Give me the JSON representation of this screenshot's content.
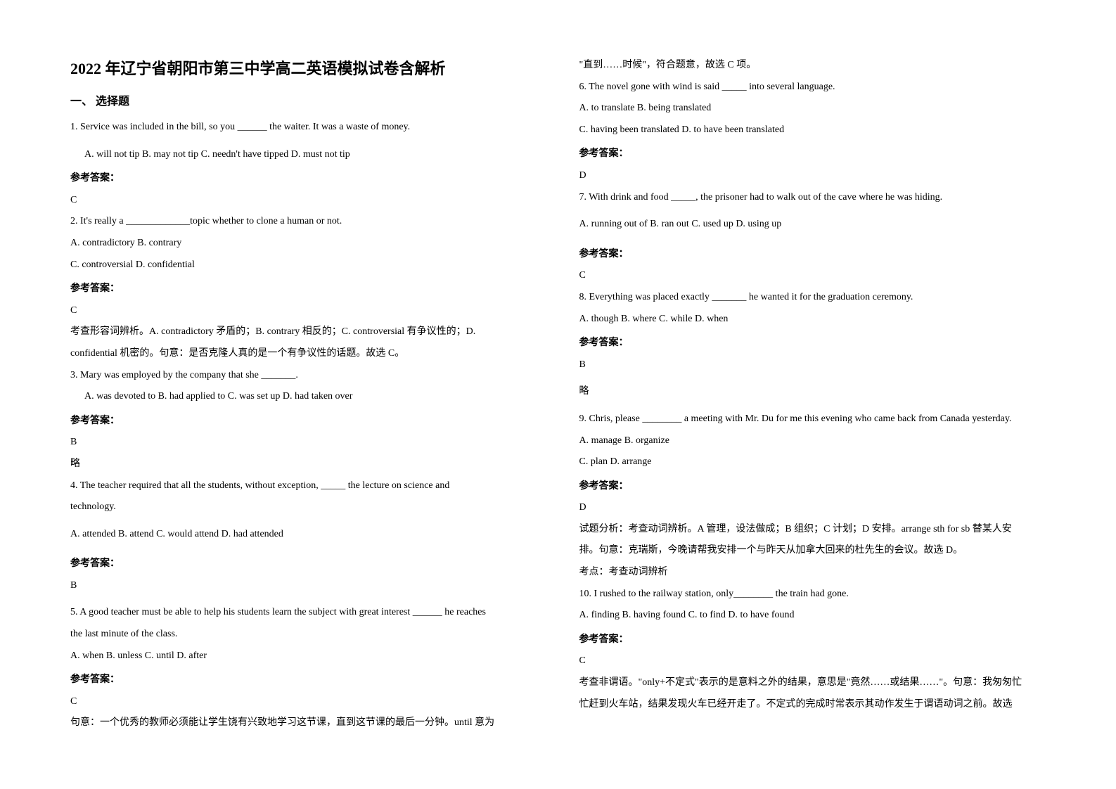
{
  "title": "2022 年辽宁省朝阳市第三中学高二英语模拟试卷含解析",
  "section_header": "一、 选择题",
  "answer_label": "参考答案：",
  "left_column": {
    "q1": {
      "text": "1. Service was included in the bill, so you ______ the waiter. It was a waste of money.",
      "opts": "A. will not tip          B. may not tip          C. needn't have tipped              D. must not tip",
      "answer": "C"
    },
    "q2": {
      "text": "2. It's really a _____________topic whether to clone a human or not.",
      "opt_line1": "A. contradictory   B. contrary",
      "opt_line2": "C. controversial   D. confidential",
      "answer": "C",
      "exp1": "考查形容词辨析。A. contradictory 矛盾的；B. contrary 相反的；C. controversial 有争议性的；D.",
      "exp2": "confidential 机密的。句意：是否克隆人真的是一个有争议性的话题。故选 C。"
    },
    "q3": {
      "text": "3. Mary was employed by the company that she _______.",
      "opts": "A. was devoted to   B. had applied to      C. was set up   D. had taken over",
      "answer": "B",
      "exp": "略"
    },
    "q4": {
      "text1": "4. The teacher required that all the students, without exception, _____ the lecture on science and",
      "text2": "technology.",
      "opts": "A. attended               B. attend               C. would attend           D. had attended",
      "answer": "B"
    },
    "q5": {
      "text1": "5. A good teacher must be able to help his students learn the subject with great interest ______ he reaches",
      "text2": "the last minute of the class.",
      "opts": "A. when      B. unless      C. until                      D. after",
      "answer": "C",
      "exp": "句意：一个优秀的教师必须能让学生饶有兴致地学习这节课，直到这节课的最后一分钟。until 意为"
    }
  },
  "right_column": {
    "q5_cont": "\"直到……时候\"，符合题意，故选 C 项。",
    "q6": {
      "text": "6. The novel gone with wind is said _____ into several language.",
      "opt_line1": "A. to translate               B. being translated",
      "opt_line2": "C. having been translated      D. to have been translated",
      "answer": "D"
    },
    "q7": {
      "text": "7. With drink and food _____, the prisoner had to walk out of the cave where he was hiding.",
      "opts": "A. running out of          B. ran out             C. used up                 D. using up",
      "answer": "C"
    },
    "q8": {
      "text": "8. Everything was placed exactly _______ he wanted it for the graduation ceremony.",
      "opts": "A. though   B. where   C. while   D. when",
      "answer": "B",
      "exp": "略"
    },
    "q9": {
      "text": "9. Chris, please ________ a meeting with Mr. Du for me this evening who came back from Canada yesterday.",
      "opt_line1": "A. manage   B. organize",
      "opt_line2": "C. plan   D. arrange",
      "answer": "D",
      "exp1": "试题分析：考查动词辨析。A 管理，设法做成；B 组织；C 计划；D 安排。arrange sth for sb 替某人安",
      "exp2": "排。句意：克瑞斯，今晚请帮我安排一个与昨天从加拿大回来的杜先生的会议。故选 D。",
      "exp3": "考点：考查动词辨析"
    },
    "q10": {
      "text": "10. I rushed to the railway station, only________ the train had gone.",
      "opts": "A. finding   B. having found     C. to find   D. to have found",
      "answer": "C",
      "exp1": "考查非谓语。\"only+不定式\"表示的是意料之外的结果，意思是\"竟然……或结果……\"。句意：我匆匆忙",
      "exp2": "忙赶到火车站，结果发现火车已经开走了。不定式的完成时常表示其动作发生于谓语动词之前。故选"
    }
  }
}
